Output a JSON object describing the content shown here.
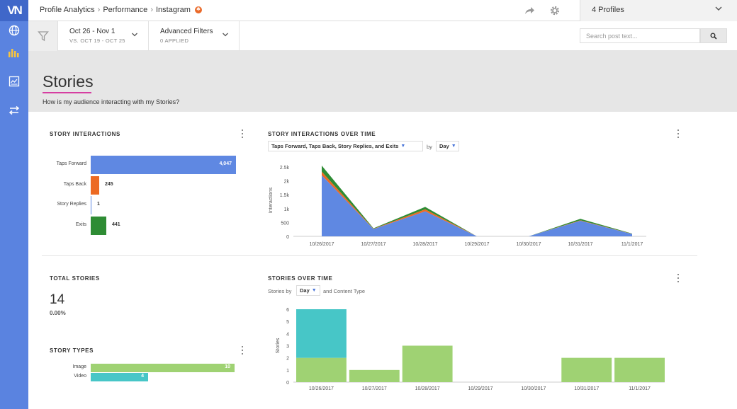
{
  "nav": {
    "breadcrumb": [
      "Profile Analytics",
      "Performance",
      "Instagram"
    ],
    "profiles_label": "4 Profiles"
  },
  "filters": {
    "date_range": "Oct 26 - Nov 1",
    "compare_range": "VS. OCT 19 - OCT 25",
    "advanced_label": "Advanced Filters",
    "advanced_applied": "0 APPLIED",
    "search_placeholder": "Search post text..."
  },
  "page": {
    "title": "Stories",
    "subtitle": "How is my audience interacting with my Stories?"
  },
  "story_interactions": {
    "title": "STORY INTERACTIONS",
    "chart_data": {
      "type": "bar",
      "orientation": "horizontal",
      "categories": [
        "Taps Forward",
        "Taps Back",
        "Story Replies",
        "Exits"
      ],
      "values": [
        4047,
        245,
        1,
        441
      ],
      "value_labels": [
        "4,047",
        "245",
        "1",
        "441"
      ],
      "colors": [
        "#5f88e2",
        "#ec6a24",
        "#5f88e2",
        "#2e8c34"
      ]
    }
  },
  "interactions_over_time": {
    "title": "STORY INTERACTIONS OVER TIME",
    "metric_select": "Taps Forward, Taps Back, Story Replies, and Exits",
    "by_text": "by",
    "period_select": "Day",
    "chart_data": {
      "type": "area",
      "stacked": true,
      "categories": [
        "10/26/2017",
        "10/27/2017",
        "10/28/2017",
        "10/29/2017",
        "10/30/2017",
        "10/31/2017",
        "11/1/2017"
      ],
      "ylabel": "Interactions",
      "ylim": [
        0,
        2600
      ],
      "yticks": [
        0,
        500,
        1000,
        1500,
        2000,
        2500
      ],
      "ytick_labels": [
        "0",
        "500",
        "1k",
        "1.5k",
        "2k",
        "2.5k"
      ],
      "series": [
        {
          "values": [
            2200,
            260,
            900,
            0,
            0,
            560,
            85
          ],
          "color": "#5f88e2"
        },
        {
          "values": [
            130,
            10,
            70,
            0,
            0,
            15,
            5
          ],
          "color": "#ec6a24"
        },
        {
          "values": [
            220,
            20,
            90,
            0,
            0,
            55,
            10
          ],
          "color": "#2e8c34"
        }
      ]
    }
  },
  "total_stories": {
    "title": "TOTAL STORIES",
    "value": "14",
    "change": "0.00%"
  },
  "story_types": {
    "title": "STORY TYPES",
    "chart_data": {
      "type": "bar",
      "orientation": "horizontal",
      "categories": [
        "Image",
        "Video"
      ],
      "values": [
        10,
        4
      ],
      "value_labels": [
        "10",
        "4"
      ],
      "colors": [
        "#9fd273",
        "#47c6c7"
      ]
    }
  },
  "stories_over_time": {
    "title": "STORIES OVER TIME",
    "prefix_text": "Stories by",
    "period_select": "Day",
    "suffix_text": "and Content Type",
    "chart_data": {
      "type": "bar",
      "stacked": true,
      "categories": [
        "10/26/2017",
        "10/27/2017",
        "10/28/2017",
        "10/29/2017",
        "10/30/2017",
        "10/31/2017",
        "11/1/2017"
      ],
      "ylabel": "Stories",
      "ylim": [
        0,
        6
      ],
      "yticks": [
        0,
        1,
        2,
        3,
        4,
        5,
        6
      ],
      "series": [
        {
          "values": [
            2,
            1,
            3,
            0,
            0,
            2,
            2
          ],
          "color": "#9fd273"
        },
        {
          "values": [
            4,
            0,
            0,
            0,
            0,
            0,
            0
          ],
          "color": "#47c6c7"
        }
      ]
    }
  }
}
